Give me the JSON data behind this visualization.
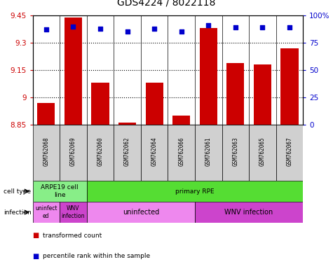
{
  "title": "GDS4224 / 8022118",
  "samples": [
    "GSM762068",
    "GSM762069",
    "GSM762060",
    "GSM762062",
    "GSM762064",
    "GSM762066",
    "GSM762061",
    "GSM762063",
    "GSM762065",
    "GSM762067"
  ],
  "transformed_counts": [
    8.97,
    9.44,
    9.08,
    8.86,
    9.08,
    8.9,
    9.38,
    9.19,
    9.18,
    9.27
  ],
  "percentile_ranks": [
    87,
    90,
    88,
    85,
    88,
    85,
    91,
    89,
    89,
    89
  ],
  "ylim_left": [
    8.85,
    9.45
  ],
  "ylim_right": [
    0,
    100
  ],
  "yticks_left": [
    8.85,
    9.0,
    9.15,
    9.3,
    9.45
  ],
  "yticks_right": [
    0,
    25,
    50,
    75,
    100
  ],
  "ytick_labels_left": [
    "8.85",
    "9",
    "9.15",
    "9.3",
    "9.45"
  ],
  "ytick_labels_right": [
    "0",
    "25",
    "50",
    "75",
    "100%"
  ],
  "bar_color": "#cc0000",
  "dot_color": "#0000cc",
  "cell_type_groups": [
    {
      "label": "ARPE19 cell\nline",
      "start": 0,
      "end": 2,
      "color": "#88ee88"
    },
    {
      "label": "primary RPE",
      "start": 2,
      "end": 10,
      "color": "#55dd33"
    }
  ],
  "infection_groups": [
    {
      "label": "uninfect\ned",
      "start": 0,
      "end": 1,
      "color": "#ee88ee"
    },
    {
      "label": "WNV\ninfection",
      "start": 1,
      "end": 2,
      "color": "#cc44cc"
    },
    {
      "label": "uninfected",
      "start": 2,
      "end": 6,
      "color": "#ee88ee"
    },
    {
      "label": "WNV infection",
      "start": 6,
      "end": 10,
      "color": "#cc44cc"
    }
  ],
  "legend_items": [
    {
      "label": "transformed count",
      "color": "#cc0000"
    },
    {
      "label": "percentile rank within the sample",
      "color": "#0000cc"
    }
  ],
  "sample_bg_color": "#d0d0d0",
  "title_fontsize": 10
}
